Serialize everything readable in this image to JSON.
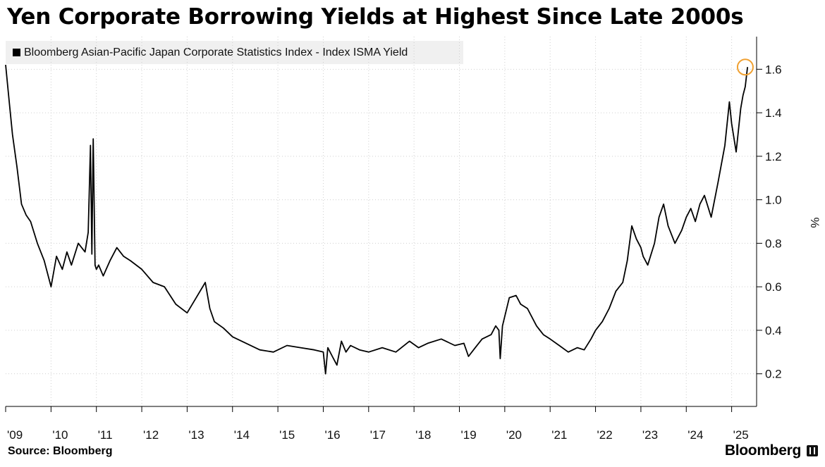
{
  "title": "Yen Corporate Borrowing Yields at Highest Since Late 2000s",
  "source": "Source: Bloomberg",
  "logo": "Bloomberg",
  "colors": {
    "line": "#000000",
    "highlight": "#f0a030",
    "grid": "#cfcfcf",
    "legend_bg": "#f0f0f0"
  },
  "chart_data": {
    "type": "line",
    "title": "Yen Corporate Borrowing Yields at Highest Since Late 2000s",
    "legend": [
      "Bloomberg Asian-Pacific Japan Corporate Statistics Index - Index ISMA Yield"
    ],
    "ylabel": "%",
    "xlabel": "",
    "ylim": [
      0.05,
      1.75
    ],
    "xlim": [
      2009.0,
      2025.55
    ],
    "y_ticks": [
      0.2,
      0.4,
      0.6,
      0.8,
      1.0,
      1.2,
      1.4,
      1.6
    ],
    "y_tick_labels": [
      "0.2",
      "0.4",
      "0.6",
      "0.8",
      "1.0",
      "1.2",
      "1.4",
      "1.6"
    ],
    "x_ticks": [
      2009,
      2010,
      2011,
      2012,
      2013,
      2014,
      2015,
      2016,
      2017,
      2018,
      2019,
      2020,
      2021,
      2022,
      2023,
      2024,
      2025
    ],
    "x_tick_labels": [
      "'09",
      "'10",
      "'11",
      "'12",
      "'13",
      "'14",
      "'15",
      "'16",
      "'17",
      "'18",
      "'19",
      "'20",
      "'21",
      "'22",
      "'23",
      "'24",
      "'25"
    ],
    "grid": true,
    "highlight": {
      "x": 2025.3,
      "y": 1.61,
      "note": "latest high"
    },
    "series": [
      {
        "name": "Index ISMA Yield",
        "x": [
          2009.0,
          2009.08,
          2009.15,
          2009.25,
          2009.35,
          2009.45,
          2009.55,
          2009.7,
          2009.85,
          2010.0,
          2010.12,
          2010.25,
          2010.35,
          2010.45,
          2010.6,
          2010.75,
          2010.82,
          2010.87,
          2010.9,
          2010.93,
          2010.97,
          2011.0,
          2011.05,
          2011.15,
          2011.3,
          2011.45,
          2011.6,
          2011.75,
          2012.0,
          2012.25,
          2012.5,
          2012.75,
          2013.0,
          2013.2,
          2013.4,
          2013.5,
          2013.6,
          2013.8,
          2014.0,
          2014.3,
          2014.6,
          2014.9,
          2015.2,
          2015.5,
          2015.8,
          2016.0,
          2016.05,
          2016.1,
          2016.2,
          2016.3,
          2016.4,
          2016.5,
          2016.6,
          2016.8,
          2017.0,
          2017.3,
          2017.6,
          2017.9,
          2018.1,
          2018.3,
          2018.6,
          2018.9,
          2019.1,
          2019.2,
          2019.35,
          2019.5,
          2019.7,
          2019.8,
          2019.87,
          2019.9,
          2019.95,
          2020.1,
          2020.25,
          2020.35,
          2020.5,
          2020.7,
          2020.85,
          2021.0,
          2021.2,
          2021.4,
          2021.6,
          2021.75,
          2021.9,
          2022.0,
          2022.15,
          2022.3,
          2022.45,
          2022.6,
          2022.7,
          2022.8,
          2022.9,
          2023.0,
          2023.05,
          2023.15,
          2023.3,
          2023.4,
          2023.5,
          2023.6,
          2023.75,
          2023.9,
          2024.0,
          2024.1,
          2024.2,
          2024.3,
          2024.4,
          2024.55,
          2024.7,
          2024.85,
          2024.95,
          2025.0,
          2025.1,
          2025.2,
          2025.25,
          2025.3,
          2025.35
        ],
        "y": [
          1.62,
          1.45,
          1.3,
          1.15,
          0.98,
          0.93,
          0.9,
          0.8,
          0.72,
          0.6,
          0.74,
          0.68,
          0.76,
          0.7,
          0.8,
          0.76,
          0.85,
          1.25,
          0.75,
          1.28,
          0.7,
          0.68,
          0.7,
          0.65,
          0.72,
          0.78,
          0.74,
          0.72,
          0.68,
          0.62,
          0.6,
          0.52,
          0.48,
          0.55,
          0.62,
          0.5,
          0.44,
          0.41,
          0.37,
          0.34,
          0.31,
          0.3,
          0.33,
          0.32,
          0.31,
          0.3,
          0.2,
          0.32,
          0.28,
          0.24,
          0.35,
          0.3,
          0.33,
          0.31,
          0.3,
          0.32,
          0.3,
          0.35,
          0.32,
          0.34,
          0.36,
          0.33,
          0.34,
          0.28,
          0.32,
          0.36,
          0.38,
          0.42,
          0.4,
          0.27,
          0.42,
          0.55,
          0.56,
          0.52,
          0.5,
          0.42,
          0.38,
          0.36,
          0.33,
          0.3,
          0.32,
          0.31,
          0.36,
          0.4,
          0.44,
          0.5,
          0.58,
          0.62,
          0.72,
          0.88,
          0.82,
          0.78,
          0.74,
          0.7,
          0.8,
          0.92,
          0.98,
          0.88,
          0.8,
          0.86,
          0.92,
          0.96,
          0.9,
          0.98,
          1.02,
          0.92,
          1.08,
          1.25,
          1.45,
          1.35,
          1.22,
          1.42,
          1.48,
          1.52,
          1.61
        ]
      }
    ]
  }
}
